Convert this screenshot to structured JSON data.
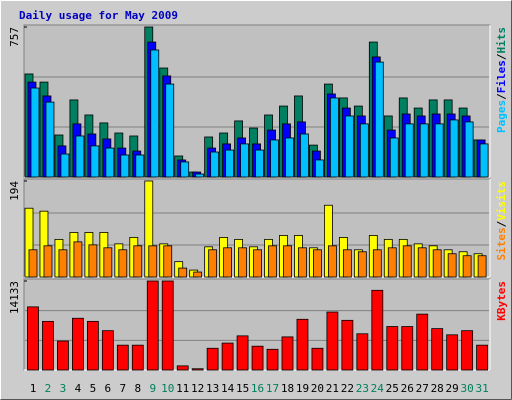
{
  "chart_data": [
    {
      "type": "bar",
      "title": "Daily usage for May 2009",
      "ylim": [
        0,
        757
      ],
      "yticks": [
        757
      ],
      "grid_divisions": 3,
      "legend_separator": "/",
      "series": [
        {
          "name": "Hits",
          "color": "#008060",
          "values": [
            520,
            479,
            212,
            389,
            313,
            273,
            222,
            207,
            757,
            550,
            106,
            25,
            202,
            222,
            283,
            247,
            313,
            358,
            409,
            161,
            469,
            399,
            358,
            681,
            308,
            399,
            348,
            389,
            389,
            348,
            187
          ]
        },
        {
          "name": "Files",
          "color": "#0000ff",
          "values": [
            479,
            409,
            157,
            268,
            217,
            192,
            146,
            131,
            681,
            510,
            86,
            25,
            146,
            167,
            197,
            167,
            237,
            268,
            278,
            131,
            419,
            348,
            308,
            606,
            237,
            318,
            308,
            318,
            318,
            308,
            187
          ]
        },
        {
          "name": "Pages",
          "color": "#00c0ff",
          "values": [
            449,
            378,
            116,
            207,
            157,
            146,
            111,
            111,
            641,
            469,
            76,
            15,
            126,
            136,
            167,
            136,
            187,
            197,
            217,
            86,
            399,
            308,
            268,
            580,
            197,
            268,
            268,
            268,
            288,
            278,
            167
          ]
        }
      ]
    },
    {
      "type": "bar",
      "ylim": [
        0,
        194
      ],
      "yticks": [
        194
      ],
      "grid_divisions": 3,
      "legend_separator": "/",
      "series": [
        {
          "name": "Visits",
          "color": "#ffff00",
          "values": [
            139,
            133,
            76,
            90,
            90,
            90,
            67,
            80,
            194,
            67,
            31,
            14,
            61,
            80,
            76,
            61,
            76,
            84,
            84,
            59,
            145,
            80,
            55,
            84,
            76,
            76,
            67,
            63,
            55,
            51,
            47
          ]
        },
        {
          "name": "Sites",
          "color": "#ff8000",
          "values": [
            55,
            63,
            55,
            71,
            65,
            59,
            55,
            63,
            63,
            63,
            18,
            10,
            55,
            59,
            59,
            55,
            63,
            63,
            59,
            55,
            63,
            55,
            51,
            55,
            59,
            63,
            59,
            55,
            47,
            43,
            43
          ]
        }
      ]
    },
    {
      "type": "bar",
      "ylim": [
        0,
        14133
      ],
      "yticks": [
        14133
      ],
      "grid_divisions": 3,
      "legend_separator": "/",
      "categories": [
        "1",
        "2",
        "3",
        "4",
        "5",
        "6",
        "7",
        "8",
        "9",
        "10",
        "11",
        "12",
        "13",
        "14",
        "15",
        "16",
        "17",
        "18",
        "19",
        "20",
        "21",
        "22",
        "23",
        "24",
        "25",
        "26",
        "27",
        "28",
        "29",
        "30",
        "31"
      ],
      "category_colors": [
        "#000000",
        "#00805c",
        "#00805c",
        "#000000",
        "#000000",
        "#000000",
        "#000000",
        "#000000",
        "#00805c",
        "#00805c",
        "#000000",
        "#000000",
        "#000000",
        "#000000",
        "#000000",
        "#00805c",
        "#00805c",
        "#000000",
        "#000000",
        "#000000",
        "#000000",
        "#000000",
        "#00805c",
        "#00805c",
        "#000000",
        "#000000",
        "#000000",
        "#000000",
        "#000000",
        "#00805c",
        "#00805c"
      ],
      "series": [
        {
          "name": "KBytes",
          "color": "#ff0000",
          "values": [
            10025,
            7724,
            4601,
            8217,
            7724,
            6245,
            3944,
            3944,
            14133,
            14133,
            657,
            200,
            3451,
            4273,
            5423,
            3780,
            3287,
            5259,
            8053,
            3451,
            9203,
            7888,
            5752,
            12654,
            6902,
            6902,
            8874,
            6573,
            5587,
            6245,
            3944
          ]
        }
      ]
    }
  ]
}
